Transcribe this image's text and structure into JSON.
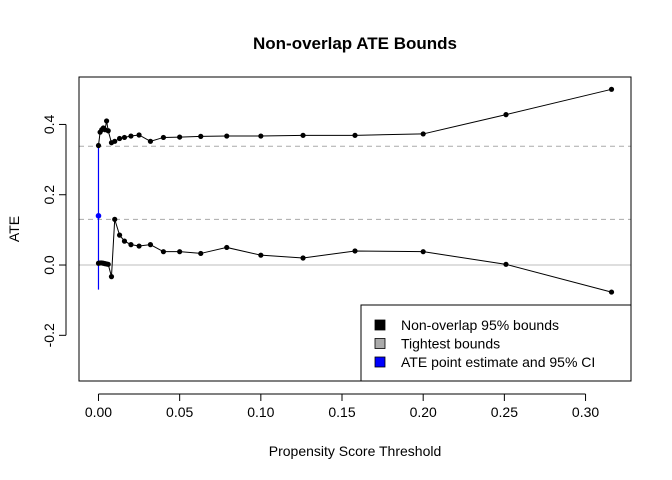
{
  "chart_data": {
    "type": "line",
    "title": "Non-overlap ATE Bounds",
    "xlabel": "Propensity Score Threshold",
    "ylabel": "ATE",
    "xlim": [
      -0.012,
      0.328
    ],
    "ylim": [
      -0.33,
      0.535
    ],
    "x_ticks": [
      0.0,
      0.05,
      0.1,
      0.15,
      0.2,
      0.25,
      0.3
    ],
    "x_tick_labels": [
      "0.00",
      "0.05",
      "0.10",
      "0.15",
      "0.20",
      "0.25",
      "0.30"
    ],
    "y_ticks": [
      -0.2,
      0.0,
      0.2,
      0.4
    ],
    "y_tick_labels": [
      "-0.2",
      "0.0",
      "0.2",
      "0.4"
    ],
    "x": [
      0.0,
      0.001,
      0.002,
      0.003,
      0.004,
      0.005,
      0.006,
      0.008,
      0.01,
      0.013,
      0.016,
      0.02,
      0.025,
      0.032,
      0.04,
      0.05,
      0.063,
      0.079,
      0.1,
      0.126,
      0.158,
      0.2,
      0.251,
      0.316
    ],
    "series": [
      {
        "name": "Upper bound",
        "color": "#000000",
        "values": [
          0.34,
          0.378,
          0.385,
          0.39,
          0.385,
          0.41,
          0.382,
          0.348,
          0.352,
          0.36,
          0.363,
          0.367,
          0.37,
          0.352,
          0.363,
          0.364,
          0.366,
          0.367,
          0.367,
          0.369,
          0.369,
          0.373,
          0.428,
          0.5
        ]
      },
      {
        "name": "Lower bound",
        "color": "#000000",
        "values": [
          0.005,
          0.006,
          0.006,
          0.005,
          0.004,
          0.003,
          0.002,
          -0.033,
          0.13,
          0.085,
          0.068,
          0.058,
          0.054,
          0.058,
          0.038,
          0.038,
          0.033,
          0.05,
          0.028,
          0.02,
          0.04,
          0.038,
          0.002,
          -0.077
        ]
      }
    ],
    "reference_lines": {
      "zero": 0.0,
      "tightest_bounds": [
        0.13,
        0.338
      ]
    },
    "point_estimate": {
      "x": 0.0,
      "y": 0.14,
      "ci": [
        -0.07,
        0.34
      ]
    },
    "legend": {
      "position": "bottom-right",
      "entries": [
        {
          "label": "Non-overlap 95% bounds",
          "color": "#000000"
        },
        {
          "label": "Tightest bounds",
          "color": "#aaaaaa"
        },
        {
          "label": "ATE point estimate and 95% CI",
          "color": "#0000ff"
        }
      ]
    },
    "grid": false
  }
}
